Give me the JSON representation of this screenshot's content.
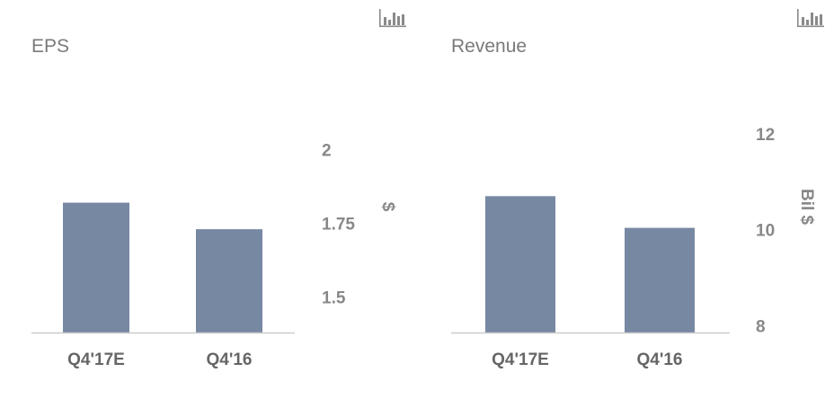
{
  "chart_data": [
    {
      "type": "bar",
      "title": "EPS",
      "categories": [
        "Q4'17E",
        "Q4'16"
      ],
      "values": [
        1.82,
        1.73
      ],
      "ylabel": "$",
      "ylim": [
        1.38,
        2.05
      ],
      "yticks": [
        {
          "value": 1.5,
          "label": "1.5"
        },
        {
          "value": 1.75,
          "label": "1.75"
        },
        {
          "value": 2,
          "label": "2"
        }
      ],
      "bar_color": "#7788a3",
      "axis": "right",
      "grid": false
    },
    {
      "type": "bar",
      "title": "Revenue",
      "categories": [
        "Q4'17E",
        "Q4'16"
      ],
      "values": [
        10.7,
        10.04
      ],
      "ylabel": "Bil $",
      "ylim": [
        7.86,
        12.24
      ],
      "yticks": [
        {
          "value": 8,
          "label": "8"
        },
        {
          "value": 10,
          "label": "10"
        },
        {
          "value": 12,
          "label": "12"
        }
      ],
      "bar_color": "#7788a3",
      "axis": "right",
      "grid": false
    }
  ],
  "icons": [
    "bar-chart-icon",
    "bar-chart-icon"
  ],
  "colors": {
    "bar": "#7788a3",
    "axis": "#cccccc",
    "text": "#888888"
  }
}
